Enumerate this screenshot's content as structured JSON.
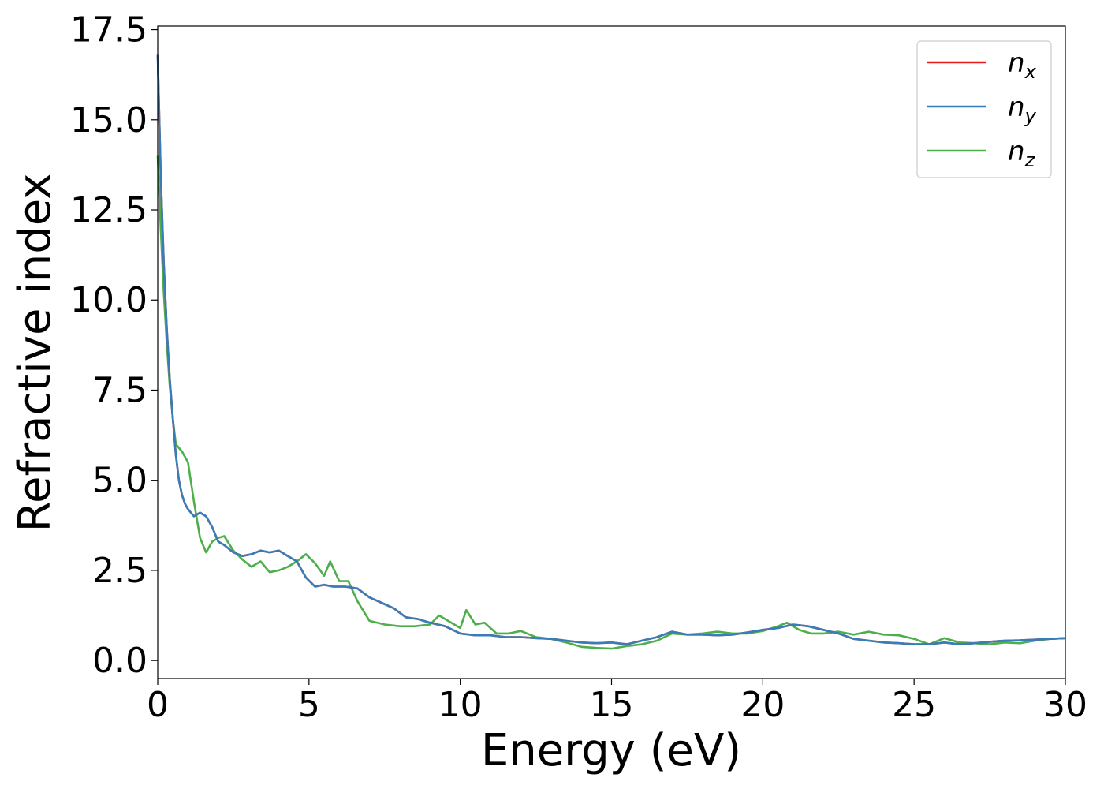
{
  "chart_data": {
    "type": "line",
    "title": "",
    "xlabel": "Energy (eV)",
    "ylabel": "Refractive index",
    "xlim": [
      0,
      30
    ],
    "ylim": [
      -0.5,
      17.6
    ],
    "xticks": [
      0,
      5,
      10,
      15,
      20,
      25,
      30
    ],
    "xtick_labels": [
      "0",
      "5",
      "10",
      "15",
      "20",
      "25",
      "30"
    ],
    "yticks": [
      0,
      2.5,
      5,
      7.5,
      10,
      12.5,
      15,
      17.5
    ],
    "ytick_labels": [
      "0.0",
      "2.5",
      "5.0",
      "7.5",
      "10.0",
      "12.5",
      "15.0",
      "17.5"
    ],
    "grid": false,
    "legend_position": "top-right",
    "series": [
      {
        "name": "n_x",
        "legend_base": "n",
        "legend_sub": "x",
        "color": "#e41a1c",
        "x": [
          0,
          0.1,
          0.2,
          0.3,
          0.4,
          0.5,
          0.6,
          0.7,
          0.8,
          0.9,
          1.0,
          1.2,
          1.4,
          1.6,
          1.8,
          2.0,
          2.2,
          2.5,
          2.8,
          3.1,
          3.4,
          3.7,
          4.0,
          4.3,
          4.6,
          4.9,
          5.2,
          5.5,
          5.8,
          6.2,
          6.6,
          7.0,
          7.4,
          7.8,
          8.2,
          8.6,
          9.0,
          9.5,
          10.0,
          10.5,
          11.0,
          11.5,
          12.0,
          12.5,
          13.0,
          13.5,
          14.0,
          14.5,
          15.0,
          15.5,
          16.0,
          16.5,
          17.0,
          17.5,
          18.0,
          18.5,
          19.0,
          19.5,
          20.0,
          20.5,
          21.0,
          21.5,
          22.0,
          22.5,
          23.0,
          23.5,
          24.0,
          24.5,
          25.0,
          25.5,
          26.0,
          26.5,
          27.0,
          27.5,
          28.0,
          28.5,
          29.0,
          29.5,
          30.0
        ],
        "y": [
          16.8,
          13.5,
          11.0,
          9.2,
          7.8,
          6.7,
          5.7,
          5.0,
          4.6,
          4.35,
          4.2,
          4.0,
          4.1,
          4.0,
          3.7,
          3.3,
          3.2,
          3.0,
          2.9,
          2.95,
          3.05,
          3.0,
          3.05,
          2.9,
          2.75,
          2.3,
          2.05,
          2.1,
          2.05,
          2.05,
          2.0,
          1.75,
          1.6,
          1.45,
          1.2,
          1.15,
          1.05,
          0.95,
          0.75,
          0.7,
          0.7,
          0.65,
          0.65,
          0.62,
          0.6,
          0.55,
          0.5,
          0.48,
          0.5,
          0.45,
          0.55,
          0.65,
          0.8,
          0.72,
          0.72,
          0.7,
          0.72,
          0.78,
          0.85,
          0.9,
          1.0,
          0.95,
          0.85,
          0.75,
          0.6,
          0.55,
          0.5,
          0.48,
          0.45,
          0.45,
          0.5,
          0.45,
          0.48,
          0.52,
          0.55,
          0.56,
          0.58,
          0.6,
          0.62
        ]
      },
      {
        "name": "n_y",
        "legend_base": "n",
        "legend_sub": "y",
        "color": "#377eb8",
        "x": [
          0,
          0.1,
          0.2,
          0.3,
          0.4,
          0.5,
          0.6,
          0.7,
          0.8,
          0.9,
          1.0,
          1.2,
          1.4,
          1.6,
          1.8,
          2.0,
          2.2,
          2.5,
          2.8,
          3.1,
          3.4,
          3.7,
          4.0,
          4.3,
          4.6,
          4.9,
          5.2,
          5.5,
          5.8,
          6.2,
          6.6,
          7.0,
          7.4,
          7.8,
          8.2,
          8.6,
          9.0,
          9.5,
          10.0,
          10.5,
          11.0,
          11.5,
          12.0,
          12.5,
          13.0,
          13.5,
          14.0,
          14.5,
          15.0,
          15.5,
          16.0,
          16.5,
          17.0,
          17.5,
          18.0,
          18.5,
          19.0,
          19.5,
          20.0,
          20.5,
          21.0,
          21.5,
          22.0,
          22.5,
          23.0,
          23.5,
          24.0,
          24.5,
          25.0,
          25.5,
          26.0,
          26.5,
          27.0,
          27.5,
          28.0,
          28.5,
          29.0,
          29.5,
          30.0
        ],
        "y": [
          16.8,
          13.5,
          11.0,
          9.2,
          7.8,
          6.7,
          5.7,
          5.0,
          4.6,
          4.35,
          4.2,
          4.0,
          4.1,
          4.0,
          3.7,
          3.3,
          3.2,
          3.0,
          2.9,
          2.95,
          3.05,
          3.0,
          3.05,
          2.9,
          2.75,
          2.3,
          2.05,
          2.1,
          2.05,
          2.05,
          2.0,
          1.75,
          1.6,
          1.45,
          1.2,
          1.15,
          1.05,
          0.95,
          0.75,
          0.7,
          0.7,
          0.65,
          0.65,
          0.62,
          0.6,
          0.55,
          0.5,
          0.48,
          0.5,
          0.45,
          0.55,
          0.65,
          0.8,
          0.72,
          0.72,
          0.7,
          0.72,
          0.78,
          0.85,
          0.9,
          1.0,
          0.95,
          0.85,
          0.75,
          0.6,
          0.55,
          0.5,
          0.48,
          0.45,
          0.45,
          0.5,
          0.45,
          0.48,
          0.52,
          0.55,
          0.56,
          0.58,
          0.6,
          0.62
        ]
      },
      {
        "name": "n_z",
        "legend_base": "n",
        "legend_sub": "z",
        "color": "#4daf4a",
        "x": [
          0,
          0.1,
          0.2,
          0.3,
          0.4,
          0.5,
          0.6,
          0.8,
          1.0,
          1.2,
          1.4,
          1.6,
          1.8,
          2.0,
          2.2,
          2.5,
          2.8,
          3.1,
          3.4,
          3.7,
          4.0,
          4.3,
          4.6,
          4.9,
          5.2,
          5.5,
          5.7,
          6.0,
          6.3,
          6.6,
          7.0,
          7.5,
          8.0,
          8.5,
          9.0,
          9.3,
          9.6,
          10.0,
          10.2,
          10.5,
          10.8,
          11.2,
          11.6,
          12.0,
          12.5,
          13.0,
          13.5,
          14.0,
          14.5,
          15.0,
          15.5,
          16.0,
          16.5,
          17.0,
          17.5,
          18.0,
          18.5,
          19.0,
          19.5,
          20.0,
          20.5,
          20.8,
          21.2,
          21.6,
          22.0,
          22.5,
          23.0,
          23.5,
          24.0,
          24.5,
          25.0,
          25.5,
          26.0,
          26.5,
          27.0,
          27.5,
          28.0,
          28.5,
          29.0,
          29.5,
          30.0
        ],
        "y": [
          14.0,
          12.0,
          10.2,
          8.8,
          7.6,
          6.7,
          6.0,
          5.8,
          5.5,
          4.4,
          3.4,
          3.0,
          3.3,
          3.4,
          3.45,
          3.05,
          2.8,
          2.6,
          2.75,
          2.45,
          2.5,
          2.6,
          2.75,
          2.95,
          2.7,
          2.35,
          2.75,
          2.2,
          2.2,
          1.65,
          1.1,
          1.0,
          0.95,
          0.95,
          1.0,
          1.25,
          1.1,
          0.9,
          1.4,
          1.0,
          1.05,
          0.75,
          0.75,
          0.82,
          0.65,
          0.6,
          0.5,
          0.38,
          0.35,
          0.33,
          0.4,
          0.45,
          0.55,
          0.75,
          0.72,
          0.75,
          0.8,
          0.75,
          0.75,
          0.82,
          0.95,
          1.05,
          0.85,
          0.75,
          0.75,
          0.8,
          0.72,
          0.8,
          0.72,
          0.7,
          0.6,
          0.45,
          0.62,
          0.5,
          0.48,
          0.45,
          0.5,
          0.48,
          0.55,
          0.6,
          0.62
        ]
      }
    ]
  }
}
